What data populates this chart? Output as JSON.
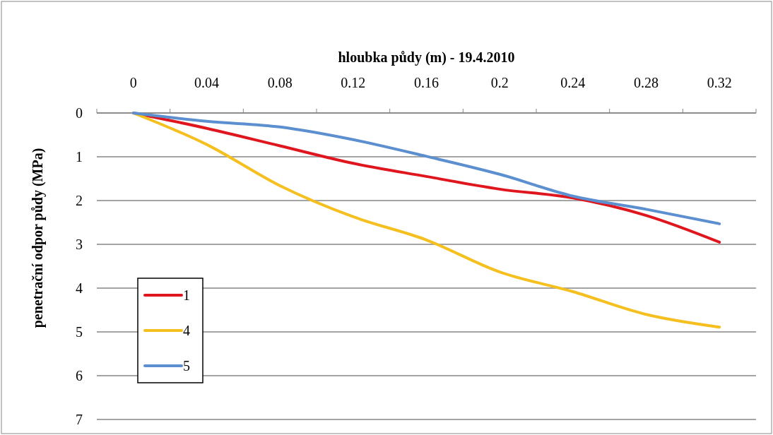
{
  "chart_data": {
    "type": "line",
    "xlabel": "hloubka půdy (m) - 19.4.2010",
    "ylabel": "penetrační odpor půdy (MPa)",
    "categories": [
      "0",
      "0.04",
      "0.08",
      "0.12",
      "0.16",
      "0.2",
      "0.24",
      "0.28",
      "0.32"
    ],
    "series": [
      {
        "name": "1",
        "color": "#e0161e",
        "values": [
          0,
          0.35,
          0.75,
          1.15,
          1.45,
          1.74,
          1.94,
          2.34,
          2.95
        ]
      },
      {
        "name": "4",
        "color": "#f5c01f",
        "values": [
          0,
          0.72,
          1.66,
          2.37,
          2.9,
          3.63,
          4.08,
          4.6,
          4.89
        ]
      },
      {
        "name": "5",
        "color": "#5b8fcf",
        "values": [
          0,
          0.19,
          0.32,
          0.61,
          0.99,
          1.4,
          1.9,
          2.2,
          2.53
        ]
      }
    ],
    "ylim": [
      7,
      0
    ],
    "yticks": [
      0,
      1,
      2,
      3,
      4,
      5,
      6,
      7
    ],
    "grid": "y",
    "legend": "bottom left",
    "marker": "none",
    "line_style": "solid"
  }
}
